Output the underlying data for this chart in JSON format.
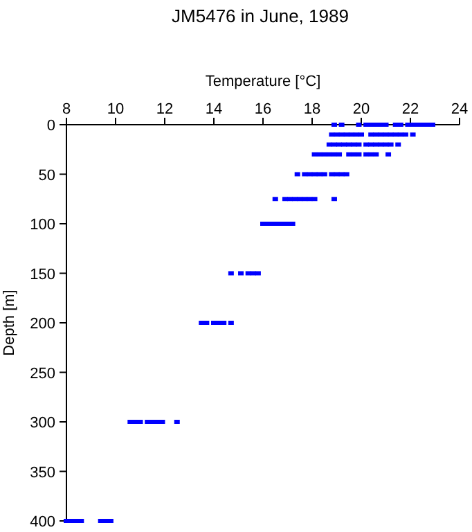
{
  "chart_data": {
    "type": "scatter",
    "title": "JM5476 in June, 1989",
    "xlabel": "Temperature [°C]",
    "ylabel": "Depth [m]",
    "xlim": [
      8,
      24
    ],
    "xticks": [
      8,
      10,
      12,
      14,
      16,
      18,
      20,
      22,
      24
    ],
    "ylim": [
      400,
      0
    ],
    "yticks": [
      0,
      50,
      100,
      150,
      200,
      250,
      300,
      350,
      400
    ],
    "grid": false,
    "marker": "square",
    "series": [
      {
        "color": "#0000ff",
        "x": [
          18.9,
          19.2,
          19.9,
          20.2,
          20.4,
          20.6,
          20.8,
          21.0,
          21.4,
          21.6,
          21.9,
          22.1,
          22.3,
          22.5,
          22.7,
          22.9
        ],
        "values": [
          0,
          0,
          0,
          0,
          0,
          0,
          0,
          0,
          0,
          0,
          0,
          0,
          0,
          0,
          0,
          0
        ]
      },
      {
        "color": "#0000ff",
        "x": [
          18.8,
          19.0,
          19.2,
          19.4,
          19.6,
          19.8,
          20.0,
          20.4,
          20.6,
          20.8,
          21.0,
          21.2,
          21.4,
          21.6,
          21.8,
          22.1
        ],
        "values": [
          10,
          10,
          10,
          10,
          10,
          10,
          10,
          10,
          10,
          10,
          10,
          10,
          10,
          10,
          10,
          10
        ]
      },
      {
        "color": "#0000ff",
        "x": [
          18.7,
          18.9,
          19.1,
          19.3,
          19.5,
          19.7,
          19.9,
          20.2,
          20.4,
          20.6,
          20.8,
          21.0,
          21.2,
          21.5
        ],
        "values": [
          20,
          20,
          20,
          20,
          20,
          20,
          20,
          20,
          20,
          20,
          20,
          20,
          20,
          20
        ]
      },
      {
        "color": "#0000ff",
        "x": [
          18.1,
          18.3,
          18.5,
          18.7,
          18.9,
          19.1,
          19.5,
          19.7,
          19.9,
          20.2,
          20.4,
          20.6,
          21.1
        ],
        "values": [
          30,
          30,
          30,
          30,
          30,
          30,
          30,
          30,
          30,
          30,
          30,
          30,
          30
        ]
      },
      {
        "color": "#0000ff",
        "x": [
          17.4,
          17.7,
          17.9,
          18.1,
          18.3,
          18.5,
          18.8,
          19.0,
          19.2,
          19.4
        ],
        "values": [
          50,
          50,
          50,
          50,
          50,
          50,
          50,
          50,
          50,
          50
        ]
      },
      {
        "color": "#0000ff",
        "x": [
          16.5,
          16.9,
          17.1,
          17.3,
          17.5,
          17.7,
          17.9,
          18.1,
          18.9
        ],
        "values": [
          75,
          75,
          75,
          75,
          75,
          75,
          75,
          75,
          75
        ]
      },
      {
        "color": "#0000ff",
        "x": [
          16.0,
          16.2,
          16.4,
          16.6,
          16.8,
          17.0,
          17.2
        ],
        "values": [
          100,
          100,
          100,
          100,
          100,
          100,
          100
        ]
      },
      {
        "color": "#0000ff",
        "x": [
          14.7,
          15.1,
          15.4,
          15.6,
          15.8
        ],
        "values": [
          150,
          150,
          150,
          150,
          150
        ]
      },
      {
        "color": "#0000ff",
        "x": [
          13.5,
          13.7,
          14.0,
          14.2,
          14.4,
          14.7
        ],
        "values": [
          200,
          200,
          200,
          200,
          200,
          200
        ]
      },
      {
        "color": "#0000ff",
        "x": [
          10.6,
          10.8,
          11.0,
          11.3,
          11.5,
          11.7,
          11.9,
          12.5
        ],
        "values": [
          300,
          300,
          300,
          300,
          300,
          300,
          300,
          300
        ]
      },
      {
        "color": "#0000ff",
        "x": [
          8.0,
          8.2,
          8.4,
          8.6,
          9.4,
          9.6,
          9.8
        ],
        "values": [
          400,
          400,
          400,
          400,
          400,
          400,
          400
        ]
      }
    ]
  }
}
